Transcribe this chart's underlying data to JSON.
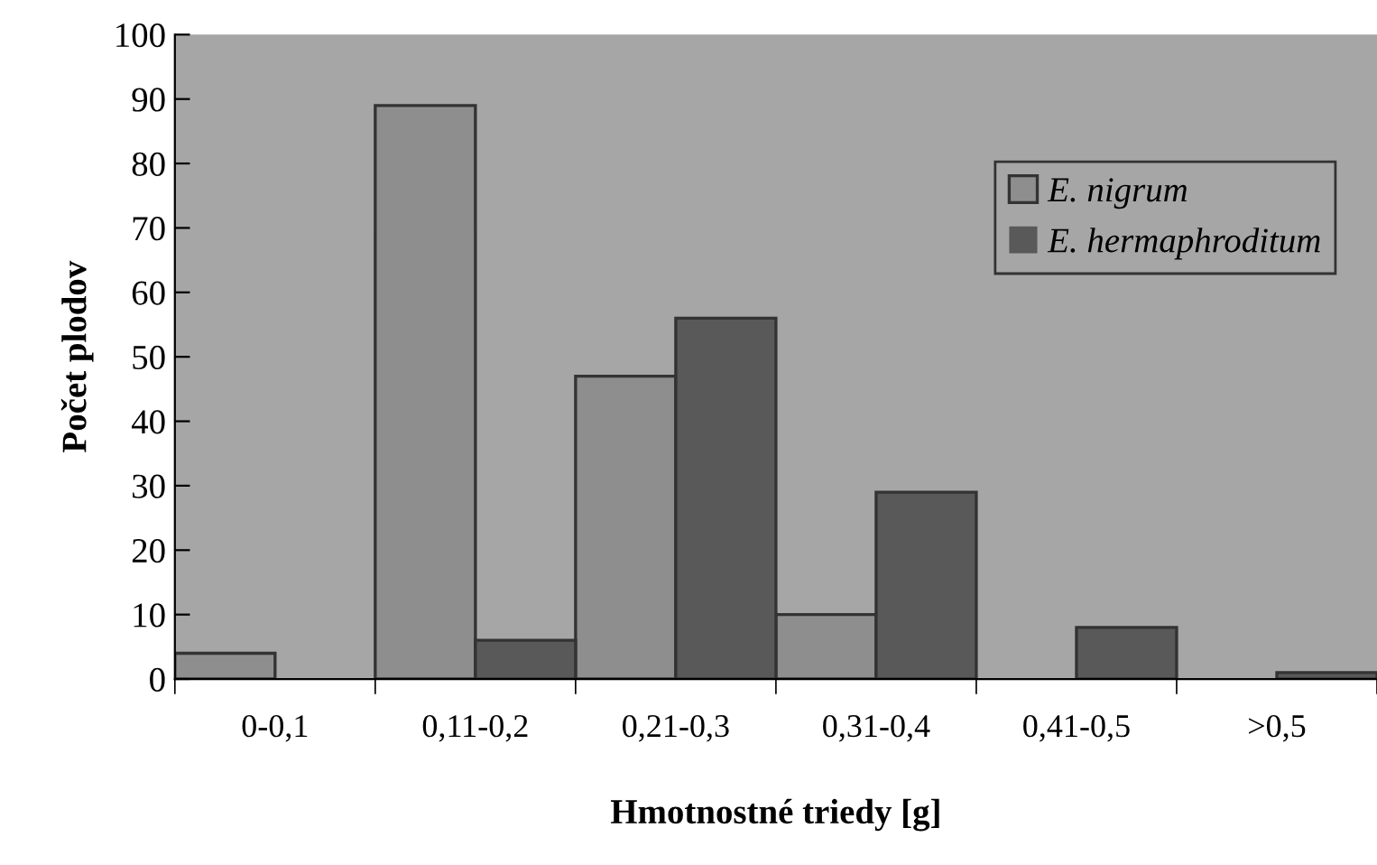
{
  "chart_data": {
    "type": "bar",
    "xlabel": "Hmotnostné triedy [g]",
    "ylabel": "Počet plodov",
    "categories": [
      "0-0,1",
      "0,11-0,2",
      "0,21-0,3",
      "0,31-0,4",
      "0,41-0,5",
      ">0,5"
    ],
    "series": [
      {
        "name": "E. nigrum",
        "color": "#8e8e8e",
        "values": [
          4,
          89,
          47,
          10,
          0,
          0
        ]
      },
      {
        "name": "E. hermaphroditum",
        "color": "#595959",
        "values": [
          0,
          6,
          56,
          29,
          8,
          1
        ]
      }
    ],
    "ylim": [
      0,
      100
    ],
    "yticks": [
      0,
      10,
      20,
      30,
      40,
      50,
      60,
      70,
      80,
      90,
      100
    ],
    "grid": false,
    "legend": "top right"
  }
}
